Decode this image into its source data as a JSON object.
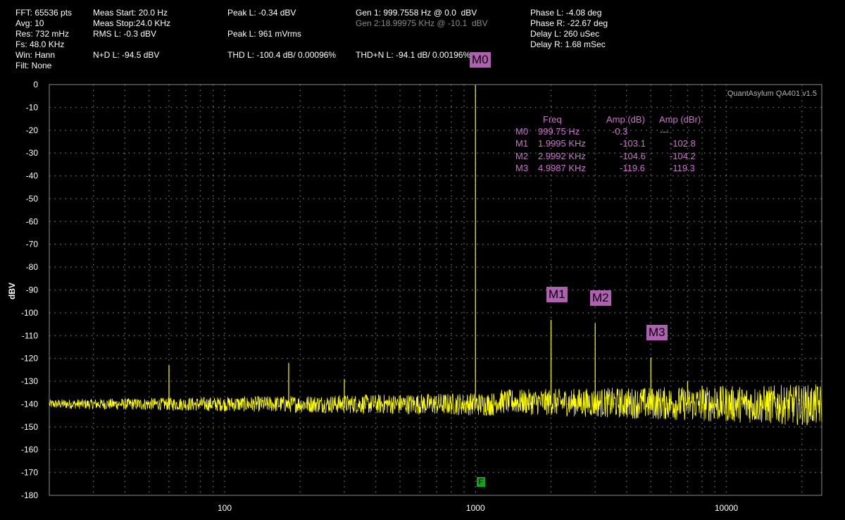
{
  "info": {
    "fft": "FFT: 65536 pts",
    "avg": "Avg: 10",
    "res": "Res: 732 mHz",
    "fs": "Fs: 48.0 KHz",
    "win": "Win: Hann",
    "filt": "Filt: None",
    "meas_start": "Meas Start: 20.0 Hz",
    "meas_stop": "Meas Stop:24.0 KHz",
    "rms": "RMS L: -0.3 dBV",
    "nd": "N+D L: -94.5 dBV",
    "peak_l": "Peak L: -0.34 dBV",
    "peak_l2": "Peak L: 961 mVrms",
    "thd": "THD L: -100.4 dB/ 0.00096%",
    "gen1": "Gen 1: 999.7558 Hz @ 0.0  dBV",
    "gen2": "Gen 2:18.99975 KHz @ -10.1  dBV",
    "thdn": "THD+N L: -94.1 dB/ 0.00196%",
    "phase_l": "Phase L: -4.08 deg",
    "phase_r": "Phase R: -22.67 deg",
    "delay_l": "Delay L: 260 uSec",
    "delay_r": "Delay R: 1.68 mSec"
  },
  "watermark": "QuantAsylum QA401 v1.5",
  "markers_table": {
    "headers": [
      "Freq",
      "Amp (dB)",
      "Amp (dBr)"
    ],
    "rows": [
      {
        "id": "M0",
        "freq": "999.75 Hz",
        "amp": "-0.3",
        "ampr": "---"
      },
      {
        "id": "M1",
        "freq": "1.9995 KHz",
        "amp": "-103.1",
        "ampr": "-102.8"
      },
      {
        "id": "M2",
        "freq": "2.9992 KHz",
        "amp": "-104.6",
        "ampr": "-104.2"
      },
      {
        "id": "M3",
        "freq": "4.9987 KHz",
        "amp": "-119.6",
        "ampr": "-119.3"
      }
    ]
  },
  "marker_labels": [
    "M0",
    "M1",
    "M2",
    "M3"
  ],
  "f_marker": "F",
  "colors": {
    "trace": "#ffff00",
    "grid": "#6e6e6e",
    "marker_bg": "#b060b0",
    "table_text": "#d070d0",
    "f_marker": "#1c9c1c"
  },
  "chart_data": {
    "type": "line",
    "xscale": "log",
    "xlim": [
      20,
      24000
    ],
    "ylim": [
      -180,
      0
    ],
    "ylabel": "dBV",
    "xticks": [
      100,
      1000,
      10000
    ],
    "xtick_labels": [
      "100",
      "1000",
      "10000"
    ],
    "yticks": [
      0,
      -10,
      -20,
      -30,
      -40,
      -50,
      -60,
      -70,
      -80,
      -90,
      -100,
      -110,
      -120,
      -130,
      -140,
      -150,
      -160,
      -170,
      -180
    ],
    "grid": true,
    "noise_floor_db": -140,
    "series": [
      {
        "peaks": [
          {
            "x": 60,
            "y": -123
          },
          {
            "x": 180,
            "y": -122
          },
          {
            "x": 300,
            "y": -129
          },
          {
            "x": 999.75,
            "y": -0.3
          },
          {
            "x": 1999.5,
            "y": -103.1
          },
          {
            "x": 2999.2,
            "y": -104.6
          },
          {
            "x": 4998.7,
            "y": -119.6
          },
          {
            "x": 7000,
            "y": -130
          },
          {
            "x": 8000,
            "y": -132
          },
          {
            "x": 9000,
            "y": -133
          }
        ]
      }
    ],
    "markers": [
      {
        "label": "M0",
        "x": 999.75,
        "y": -0.3
      },
      {
        "label": "M1",
        "x": 1999.5,
        "y": -103.1
      },
      {
        "label": "M2",
        "x": 2999.2,
        "y": -104.6
      },
      {
        "label": "M3",
        "x": 4998.7,
        "y": -119.6
      }
    ]
  }
}
